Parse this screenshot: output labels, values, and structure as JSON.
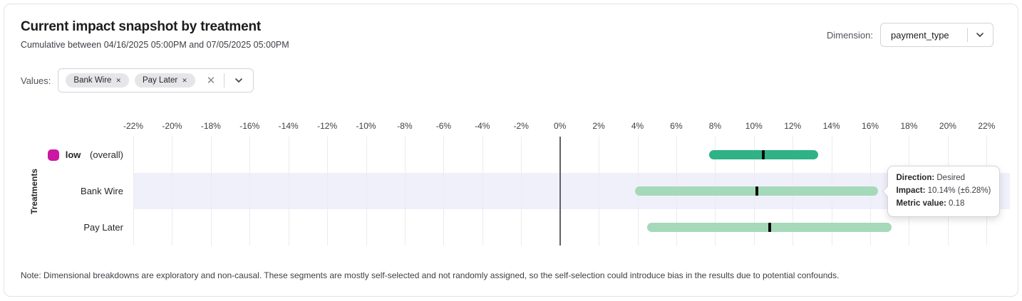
{
  "header": {
    "title": "Current impact snapshot by treatment",
    "subtitle": "Cumulative between 04/16/2025 05:00PM and 07/05/2025 05:00PM",
    "dimension_label": "Dimension:",
    "dimension_value": "payment_type"
  },
  "filters": {
    "values_label": "Values:",
    "chips": [
      {
        "label": "Bank Wire"
      },
      {
        "label": "Pay Later"
      }
    ]
  },
  "chart_data": {
    "type": "bar",
    "subtype": "horizontal-confidence-interval",
    "title": "Current impact snapshot by treatment",
    "y_axis_label": "Treatments",
    "x_axis": {
      "min": -22,
      "max": 23.2,
      "tick_min": -22,
      "tick_max": 22,
      "tick_step": 2,
      "tick_suffix": "%",
      "unit": "percent"
    },
    "highlight_color": "#f0f0fb",
    "rows": [
      {
        "label": "low",
        "label_bold": true,
        "label_suffix": "(overall)",
        "legend_color": "#cb17a2",
        "impact": 10.5,
        "ci_low": 7.7,
        "ci_high": 13.3,
        "bar_color": "#2fb286",
        "highlighted": false
      },
      {
        "label": "Bank Wire",
        "label_bold": false,
        "impact": 10.14,
        "ci_low": 3.86,
        "ci_high": 16.42,
        "bar_color": "#a6d9b9",
        "highlighted": true
      },
      {
        "label": "Pay Later",
        "label_bold": false,
        "impact": 10.8,
        "ci_low": 4.5,
        "ci_high": 17.1,
        "bar_color": "#a6d9b9",
        "highlighted": false
      }
    ]
  },
  "tooltip": {
    "direction_label": "Direction:",
    "direction_value": "Desired",
    "impact_label": "Impact:",
    "impact_value": "10.14% (±6.28%)",
    "metric_label": "Metric value:",
    "metric_value": "0.18"
  },
  "note": "Note: Dimensional breakdowns are exploratory and non-causal. These segments are mostly self-selected and not randomly assigned, so the self-selection could introduce bias in the results due to potential confounds."
}
